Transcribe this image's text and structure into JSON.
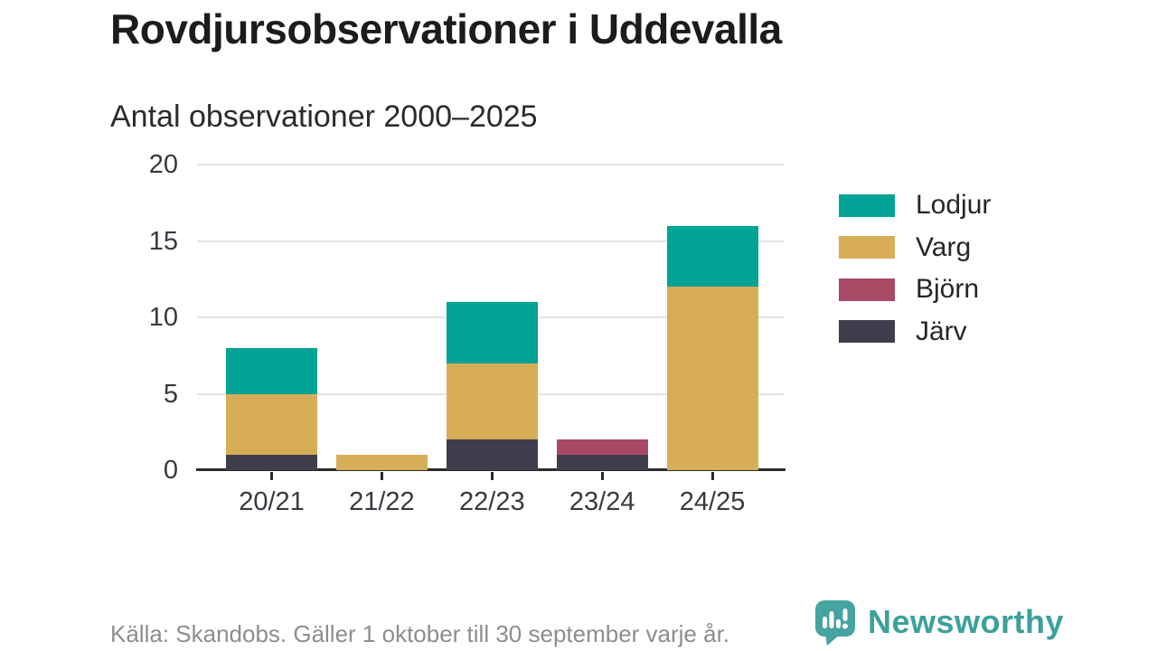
{
  "title": "Rovdjursobservationer i Uddevalla",
  "subtitle": "Antal observationer 2000–2025",
  "chart_data": {
    "type": "bar",
    "stacked": true,
    "title": "Rovdjursobservationer i Uddevalla",
    "subtitle": "Antal observationer 2000–2025",
    "categories": [
      "20/21",
      "21/22",
      "22/23",
      "23/24",
      "24/25"
    ],
    "series": [
      {
        "name": "Järv",
        "color": "#413d4c",
        "values": [
          1,
          0,
          2,
          1,
          0
        ]
      },
      {
        "name": "Björn",
        "color": "#a84a66",
        "values": [
          0,
          0,
          0,
          1,
          0
        ]
      },
      {
        "name": "Varg",
        "color": "#d8ad58",
        "values": [
          4,
          1,
          5,
          0,
          12
        ]
      },
      {
        "name": "Lodjur",
        "color": "#00a396",
        "values": [
          3,
          0,
          4,
          0,
          4
        ]
      }
    ],
    "stack_order": "bottom_to_top",
    "totals": [
      8,
      1,
      11,
      2,
      16
    ],
    "xlabel": "",
    "ylabel": "",
    "ylim": [
      0,
      20
    ],
    "yticks": [
      0,
      5,
      10,
      15,
      20
    ],
    "grid": true,
    "legend_position": "right",
    "legend": {
      "items": [
        {
          "label": "Lodjur",
          "color": "#00a396"
        },
        {
          "label": "Varg",
          "color": "#d8ad58"
        },
        {
          "label": "Björn",
          "color": "#a84a66"
        },
        {
          "label": "Järv",
          "color": "#413d4c"
        }
      ]
    }
  },
  "colors": {
    "lodjur": "#00a396",
    "varg": "#d8ad58",
    "bjorn": "#a84a66",
    "jarv": "#413d4c",
    "grid": "#e4e4e4",
    "axis": "#2c2b31",
    "brand_teal": "#3ba19b"
  },
  "footer": {
    "source": "Källa: Skandobs. Gäller 1 oktober till 30 september varje år.",
    "brand": "Newsworthy"
  }
}
